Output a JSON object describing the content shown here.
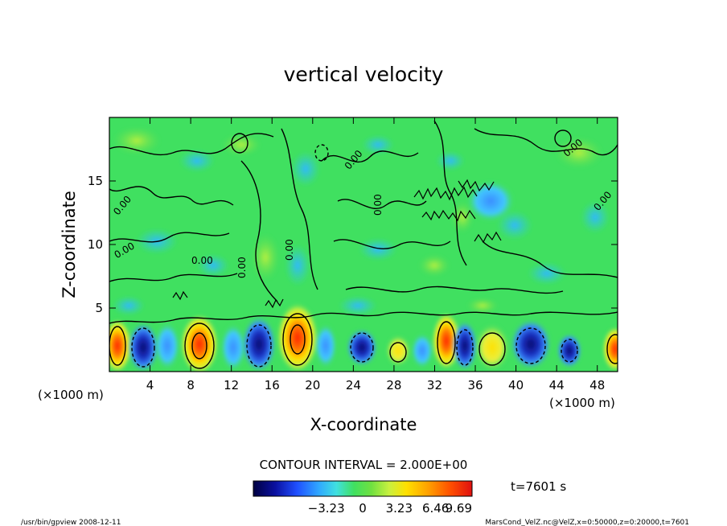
{
  "chart_data": {
    "type": "heatmap",
    "title": "vertical velocity",
    "xlabel": "X-coordinate",
    "ylabel": "Z-coordinate",
    "x_unit_left": "(×1000 m)",
    "x_unit_right": "(×1000 m)",
    "xlim": [
      0,
      50
    ],
    "ylim": [
      0,
      20
    ],
    "xticks": [
      4,
      8,
      12,
      16,
      20,
      24,
      28,
      32,
      36,
      40,
      44,
      48
    ],
    "yticks": [
      5,
      10,
      15
    ],
    "contour_interval": "CONTOUR INTERVAL = 2.000E+00",
    "contour_labels": [
      "0.00",
      "0.00",
      "0.00",
      "0.00",
      "0.00",
      "0.00",
      "0.00",
      "0.00",
      "0.00"
    ],
    "colorbar": {
      "range": [
        -9.69,
        9.69
      ],
      "ticks": [
        "−3.23",
        "0",
        "3.23",
        "6.46",
        "9.69"
      ],
      "tick_values": [
        -3.23,
        0,
        3.23,
        6.46,
        9.69
      ]
    },
    "time_label": "t=7601 s",
    "footer_left": "/usr/bin/gpview   2008-12-11",
    "footer_right": "MarsCond_VelZ.nc@VelZ,x=0:50000,z=0:20000,t=7601",
    "colors": {
      "strong_negative": "#0a0a80",
      "negative": "#2a6cff",
      "weak_negative": "#42c8ff",
      "neutral": "#40e060",
      "weak_positive": "#c8f040",
      "positive": "#ffe000",
      "strong_positive": "#e02000"
    }
  }
}
